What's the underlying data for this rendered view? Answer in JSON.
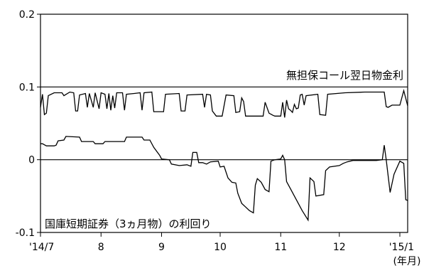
{
  "chart_data": {
    "type": "line",
    "x_unit_label": "(年月)",
    "ylim": [
      -0.1,
      0.2
    ],
    "yticks": [
      {
        "value": 0.2,
        "label": "0.2"
      },
      {
        "value": 0.1,
        "label": "0.1"
      },
      {
        "value": 0,
        "label": "0"
      },
      {
        "value": -0.1,
        "label": "-0.1"
      }
    ],
    "xrange": [
      "2014-07-01",
      "2015-01-05"
    ],
    "xticks": [
      {
        "date": "2014-07-01",
        "label": "'14/7"
      },
      {
        "date": "2014-08-01",
        "label": "8"
      },
      {
        "date": "2014-09-01",
        "label": "9"
      },
      {
        "date": "2014-10-01",
        "label": "10"
      },
      {
        "date": "2014-11-01",
        "label": "11"
      },
      {
        "date": "2014-12-01",
        "label": "12"
      },
      {
        "date": "2015-01-01",
        "label": "'15/1"
      }
    ],
    "reference_lines": [
      0.1,
      0
    ],
    "grid": false,
    "series": [
      {
        "name": "無担保コール翌日物金利",
        "color": "#000000",
        "points": [
          [
            "2014-07-01",
            0.072
          ],
          [
            "2014-07-02",
            0.09
          ],
          [
            "2014-07-03",
            0.062
          ],
          [
            "2014-07-04",
            0.064
          ],
          [
            "2014-07-05",
            0.088
          ],
          [
            "2014-07-08",
            0.092
          ],
          [
            "2014-07-12",
            0.092
          ],
          [
            "2014-07-13",
            0.088
          ],
          [
            "2014-07-16",
            0.093
          ],
          [
            "2014-07-18",
            0.092
          ],
          [
            "2014-07-19",
            0.067
          ],
          [
            "2014-07-20",
            0.067
          ],
          [
            "2014-07-21",
            0.089
          ],
          [
            "2014-07-24",
            0.091
          ],
          [
            "2014-07-25",
            0.072
          ],
          [
            "2014-07-26",
            0.091
          ],
          [
            "2014-07-28",
            0.072
          ],
          [
            "2014-07-29",
            0.092
          ],
          [
            "2014-07-31",
            0.07
          ],
          [
            "2014-08-01",
            0.092
          ],
          [
            "2014-08-03",
            0.09
          ],
          [
            "2014-08-04",
            0.07
          ],
          [
            "2014-08-05",
            0.091
          ],
          [
            "2014-08-06",
            0.068
          ],
          [
            "2014-08-07",
            0.088
          ],
          [
            "2014-08-08",
            0.071
          ],
          [
            "2014-08-09",
            0.092
          ],
          [
            "2014-08-12",
            0.092
          ],
          [
            "2014-08-13",
            0.068
          ],
          [
            "2014-08-14",
            0.09
          ],
          [
            "2014-08-18",
            0.091
          ],
          [
            "2014-08-21",
            0.092
          ],
          [
            "2014-08-22",
            0.068
          ],
          [
            "2014-08-23",
            0.092
          ],
          [
            "2014-08-27",
            0.093
          ],
          [
            "2014-08-28",
            0.066
          ],
          [
            "2014-09-02",
            0.066
          ],
          [
            "2014-09-03",
            0.09
          ],
          [
            "2014-09-10",
            0.091
          ],
          [
            "2014-09-11",
            0.067
          ],
          [
            "2014-09-13",
            0.067
          ],
          [
            "2014-09-14",
            0.089
          ],
          [
            "2014-09-22",
            0.09
          ],
          [
            "2014-09-23",
            0.072
          ],
          [
            "2014-09-24",
            0.09
          ],
          [
            "2014-09-26",
            0.089
          ],
          [
            "2014-09-27",
            0.067
          ],
          [
            "2014-09-29",
            0.06
          ],
          [
            "2014-10-02",
            0.06
          ],
          [
            "2014-10-04",
            0.089
          ],
          [
            "2014-10-08",
            0.088
          ],
          [
            "2014-10-09",
            0.065
          ],
          [
            "2014-10-11",
            0.066
          ],
          [
            "2014-10-12",
            0.085
          ],
          [
            "2014-10-13",
            0.08
          ],
          [
            "2014-10-14",
            0.06
          ],
          [
            "2014-10-23",
            0.06
          ],
          [
            "2014-10-24",
            0.079
          ],
          [
            "2014-10-26",
            0.064
          ],
          [
            "2014-10-28",
            0.061
          ],
          [
            "2014-10-29",
            0.06
          ],
          [
            "2014-11-01",
            0.06
          ],
          [
            "2014-11-02",
            0.079
          ],
          [
            "2014-11-03",
            0.058
          ],
          [
            "2014-11-04",
            0.082
          ],
          [
            "2014-11-05",
            0.07
          ],
          [
            "2014-11-06",
            0.068
          ],
          [
            "2014-11-07",
            0.065
          ],
          [
            "2014-11-08",
            0.076
          ],
          [
            "2014-11-09",
            0.07
          ],
          [
            "2014-11-10",
            0.071
          ],
          [
            "2014-11-11",
            0.089
          ],
          [
            "2014-11-12",
            0.09
          ],
          [
            "2014-11-13",
            0.075
          ],
          [
            "2014-11-14",
            0.088
          ],
          [
            "2014-11-20",
            0.09
          ],
          [
            "2014-11-21",
            0.062
          ],
          [
            "2014-11-24",
            0.061
          ],
          [
            "2014-11-25",
            0.09
          ],
          [
            "2014-12-04",
            0.092
          ],
          [
            "2014-12-14",
            0.093
          ],
          [
            "2014-12-24",
            0.093
          ],
          [
            "2014-12-25",
            0.073
          ],
          [
            "2014-12-26",
            0.072
          ],
          [
            "2014-12-28",
            0.075
          ],
          [
            "2015-01-01",
            0.075
          ],
          [
            "2015-01-03",
            0.095
          ],
          [
            "2015-01-05",
            0.074
          ]
        ]
      },
      {
        "name": "国庫短期証券（3ヵ月物）の利回り",
        "color": "#000000",
        "points": [
          [
            "2014-07-01",
            0.022
          ],
          [
            "2014-07-02",
            0.022
          ],
          [
            "2014-07-04",
            0.019
          ],
          [
            "2014-07-08",
            0.019
          ],
          [
            "2014-07-09",
            0.02
          ],
          [
            "2014-07-10",
            0.026
          ],
          [
            "2014-07-13",
            0.027
          ],
          [
            "2014-07-14",
            0.032
          ],
          [
            "2014-07-21",
            0.031
          ],
          [
            "2014-07-22",
            0.025
          ],
          [
            "2014-07-28",
            0.025
          ],
          [
            "2014-07-29",
            0.022
          ],
          [
            "2014-08-02",
            0.022
          ],
          [
            "2014-08-03",
            0.025
          ],
          [
            "2014-08-13",
            0.025
          ],
          [
            "2014-08-14",
            0.031
          ],
          [
            "2014-08-22",
            0.031
          ],
          [
            "2014-08-23",
            0.027
          ],
          [
            "2014-08-26",
            0.027
          ],
          [
            "2014-08-28",
            0.017
          ],
          [
            "2014-08-31",
            0.006
          ],
          [
            "2014-09-01",
            0.001
          ],
          [
            "2014-09-05",
            0.0
          ],
          [
            "2014-09-06",
            -0.006
          ],
          [
            "2014-09-10",
            -0.008
          ],
          [
            "2014-09-14",
            -0.007
          ],
          [
            "2014-09-16",
            -0.009
          ],
          [
            "2014-09-17",
            0.01
          ],
          [
            "2014-09-19",
            0.01
          ],
          [
            "2014-09-20",
            -0.004
          ],
          [
            "2014-09-22",
            -0.004
          ],
          [
            "2014-09-24",
            -0.006
          ],
          [
            "2014-09-26",
            -0.003
          ],
          [
            "2014-09-30",
            -0.002
          ],
          [
            "2014-10-01",
            -0.01
          ],
          [
            "2014-10-03",
            -0.009
          ],
          [
            "2014-10-05",
            -0.025
          ],
          [
            "2014-10-07",
            -0.031
          ],
          [
            "2014-10-09",
            -0.032
          ],
          [
            "2014-10-10",
            -0.046
          ],
          [
            "2014-10-12",
            -0.06
          ],
          [
            "2014-10-14",
            -0.065
          ],
          [
            "2014-10-16",
            -0.07
          ],
          [
            "2014-10-18",
            -0.073
          ],
          [
            "2014-10-19",
            -0.035
          ],
          [
            "2014-10-20",
            -0.026
          ],
          [
            "2014-10-22",
            -0.031
          ],
          [
            "2014-10-24",
            -0.041
          ],
          [
            "2014-10-26",
            -0.044
          ],
          [
            "2014-10-27",
            -0.002
          ],
          [
            "2014-10-29",
            0.0
          ],
          [
            "2014-11-01",
            0.001
          ],
          [
            "2014-11-02",
            0.006
          ],
          [
            "2014-11-03",
            0.0
          ],
          [
            "2014-11-04",
            -0.03
          ],
          [
            "2014-11-06",
            -0.04
          ],
          [
            "2014-11-08",
            -0.05
          ],
          [
            "2014-11-10",
            -0.06
          ],
          [
            "2014-11-12",
            -0.07
          ],
          [
            "2014-11-15",
            -0.083
          ],
          [
            "2014-11-16",
            -0.025
          ],
          [
            "2014-11-18",
            -0.03
          ],
          [
            "2014-11-19",
            -0.05
          ],
          [
            "2014-11-23",
            -0.048
          ],
          [
            "2014-11-24",
            -0.015
          ],
          [
            "2014-11-26",
            -0.01
          ],
          [
            "2014-12-01",
            -0.008
          ],
          [
            "2014-12-03",
            -0.005
          ],
          [
            "2014-12-05",
            -0.003
          ],
          [
            "2014-12-08",
            -0.001
          ],
          [
            "2014-12-20",
            -0.001
          ],
          [
            "2014-12-23",
            0.0
          ],
          [
            "2014-12-24",
            0.02
          ],
          [
            "2014-12-25",
            0.0
          ],
          [
            "2014-12-27",
            -0.045
          ],
          [
            "2014-12-29",
            -0.02
          ],
          [
            "2015-01-01",
            -0.002
          ],
          [
            "2015-01-03",
            -0.005
          ],
          [
            "2015-01-04",
            -0.055
          ],
          [
            "2015-01-05",
            -0.056
          ]
        ]
      }
    ]
  }
}
